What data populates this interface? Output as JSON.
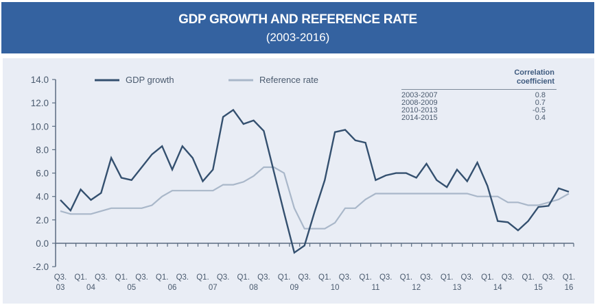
{
  "header": {
    "title": "GDP GROWTH AND REFERENCE RATE",
    "subtitle": "(2003-2016)"
  },
  "colors": {
    "header_bg": "#3462a0",
    "panel_bg": "#e9edf5",
    "gdp_line": "#34506f",
    "reference_line": "#a9b7c9",
    "axis": "#5a6b80"
  },
  "correlation_table": {
    "header_line1": "Correlation",
    "header_line2": "coefficient",
    "rows": [
      {
        "period": "2003-2007",
        "value": "0.8"
      },
      {
        "period": "2008-2009",
        "value": "0.7"
      },
      {
        "period": "2010-2013",
        "value": "-0.5"
      },
      {
        "period": "2014-2015",
        "value": "0.4"
      }
    ]
  },
  "chart_data": {
    "type": "line",
    "title": "GDP GROWTH AND REFERENCE RATE",
    "subtitle": "(2003-2016)",
    "xlabel": "",
    "ylabel": "",
    "ylim": [
      -2.0,
      14.0
    ],
    "yticks": [
      "-2.0",
      "0.0",
      "2.0",
      "4.0",
      "6.0",
      "8.0",
      "10.0",
      "12.0",
      "14.0"
    ],
    "ytick_values": [
      -2,
      0,
      2,
      4,
      6,
      8,
      10,
      12,
      14
    ],
    "grid": false,
    "legend_position": "top-left",
    "x": [
      "Q3 03",
      "Q4 03",
      "Q1 04",
      "Q2 04",
      "Q3 04",
      "Q4 04",
      "Q1 05",
      "Q2 05",
      "Q3 05",
      "Q4 05",
      "Q1 06",
      "Q2 06",
      "Q3 06",
      "Q4 06",
      "Q1 07",
      "Q2 07",
      "Q3 07",
      "Q4 07",
      "Q1 08",
      "Q2 08",
      "Q3 08",
      "Q4 08",
      "Q1 09",
      "Q2 09",
      "Q3 09",
      "Q4 09",
      "Q1 10",
      "Q2 10",
      "Q3 10",
      "Q4 10",
      "Q1 11",
      "Q2 11",
      "Q3 11",
      "Q4 11",
      "Q1 12",
      "Q2 12",
      "Q3 12",
      "Q4 12",
      "Q1 13",
      "Q2 13",
      "Q3 13",
      "Q4 13",
      "Q1 14",
      "Q2 14",
      "Q3 14",
      "Q4 14",
      "Q1 15",
      "Q2 15",
      "Q3 15",
      "Q4 15",
      "Q1 16"
    ],
    "xtick_labels": [
      {
        "index": 0,
        "quarter": "Q3.",
        "year": "03"
      },
      {
        "index": 2,
        "quarter": "Q1.",
        "year": "04"
      },
      {
        "index": 4,
        "quarter": "Q3.",
        "year": ""
      },
      {
        "index": 6,
        "quarter": "Q1.",
        "year": "05"
      },
      {
        "index": 8,
        "quarter": "Q3.",
        "year": ""
      },
      {
        "index": 10,
        "quarter": "Q1.",
        "year": "06"
      },
      {
        "index": 12,
        "quarter": "Q3.",
        "year": ""
      },
      {
        "index": 14,
        "quarter": "Q1.",
        "year": "07"
      },
      {
        "index": 16,
        "quarter": "Q3.",
        "year": ""
      },
      {
        "index": 18,
        "quarter": "Q1.",
        "year": "08"
      },
      {
        "index": 20,
        "quarter": "Q3.",
        "year": ""
      },
      {
        "index": 22,
        "quarter": "Q1.",
        "year": "09"
      },
      {
        "index": 24,
        "quarter": "Q3.",
        "year": ""
      },
      {
        "index": 26,
        "quarter": "Q1.",
        "year": "10"
      },
      {
        "index": 28,
        "quarter": "Q3.",
        "year": ""
      },
      {
        "index": 30,
        "quarter": "Q1.",
        "year": "11"
      },
      {
        "index": 32,
        "quarter": "Q3.",
        "year": ""
      },
      {
        "index": 34,
        "quarter": "Q1.",
        "year": "12"
      },
      {
        "index": 36,
        "quarter": "Q3.",
        "year": ""
      },
      {
        "index": 38,
        "quarter": "Q1.",
        "year": "13"
      },
      {
        "index": 40,
        "quarter": "Q3.",
        "year": ""
      },
      {
        "index": 42,
        "quarter": "Q1.",
        "year": "14"
      },
      {
        "index": 44,
        "quarter": "Q3.",
        "year": ""
      },
      {
        "index": 46,
        "quarter": "Q1.",
        "year": "15"
      },
      {
        "index": 48,
        "quarter": "Q3.",
        "year": ""
      },
      {
        "index": 50,
        "quarter": "Q1.",
        "year": "16"
      }
    ],
    "series": [
      {
        "name": "GDP growth",
        "color": "#34506f",
        "values": [
          3.7,
          2.8,
          4.6,
          3.7,
          4.3,
          7.3,
          5.6,
          5.4,
          6.5,
          7.6,
          8.3,
          6.3,
          8.3,
          7.3,
          5.3,
          6.3,
          10.8,
          11.4,
          10.2,
          10.5,
          9.6,
          6.1,
          2.6,
          -0.8,
          -0.2,
          2.7,
          5.4,
          9.5,
          9.7,
          8.8,
          8.6,
          5.4,
          5.8,
          6.0,
          6.0,
          5.6,
          6.8,
          5.4,
          4.8,
          6.3,
          5.3,
          6.9,
          4.9,
          1.9,
          1.8,
          1.1,
          1.9,
          3.1,
          3.2,
          4.7,
          4.4
        ]
      },
      {
        "name": "Reference rate",
        "color": "#a9b7c9",
        "values": [
          2.75,
          2.5,
          2.5,
          2.5,
          2.75,
          3.0,
          3.0,
          3.0,
          3.0,
          3.25,
          4.0,
          4.5,
          4.5,
          4.5,
          4.5,
          4.5,
          5.0,
          5.0,
          5.25,
          5.75,
          6.5,
          6.5,
          6.0,
          3.0,
          1.25,
          1.25,
          1.25,
          1.75,
          3.0,
          3.0,
          3.75,
          4.25,
          4.25,
          4.25,
          4.25,
          4.25,
          4.25,
          4.25,
          4.25,
          4.25,
          4.25,
          4.0,
          4.0,
          4.0,
          3.5,
          3.5,
          3.25,
          3.25,
          3.5,
          3.75,
          4.25
        ]
      }
    ]
  }
}
